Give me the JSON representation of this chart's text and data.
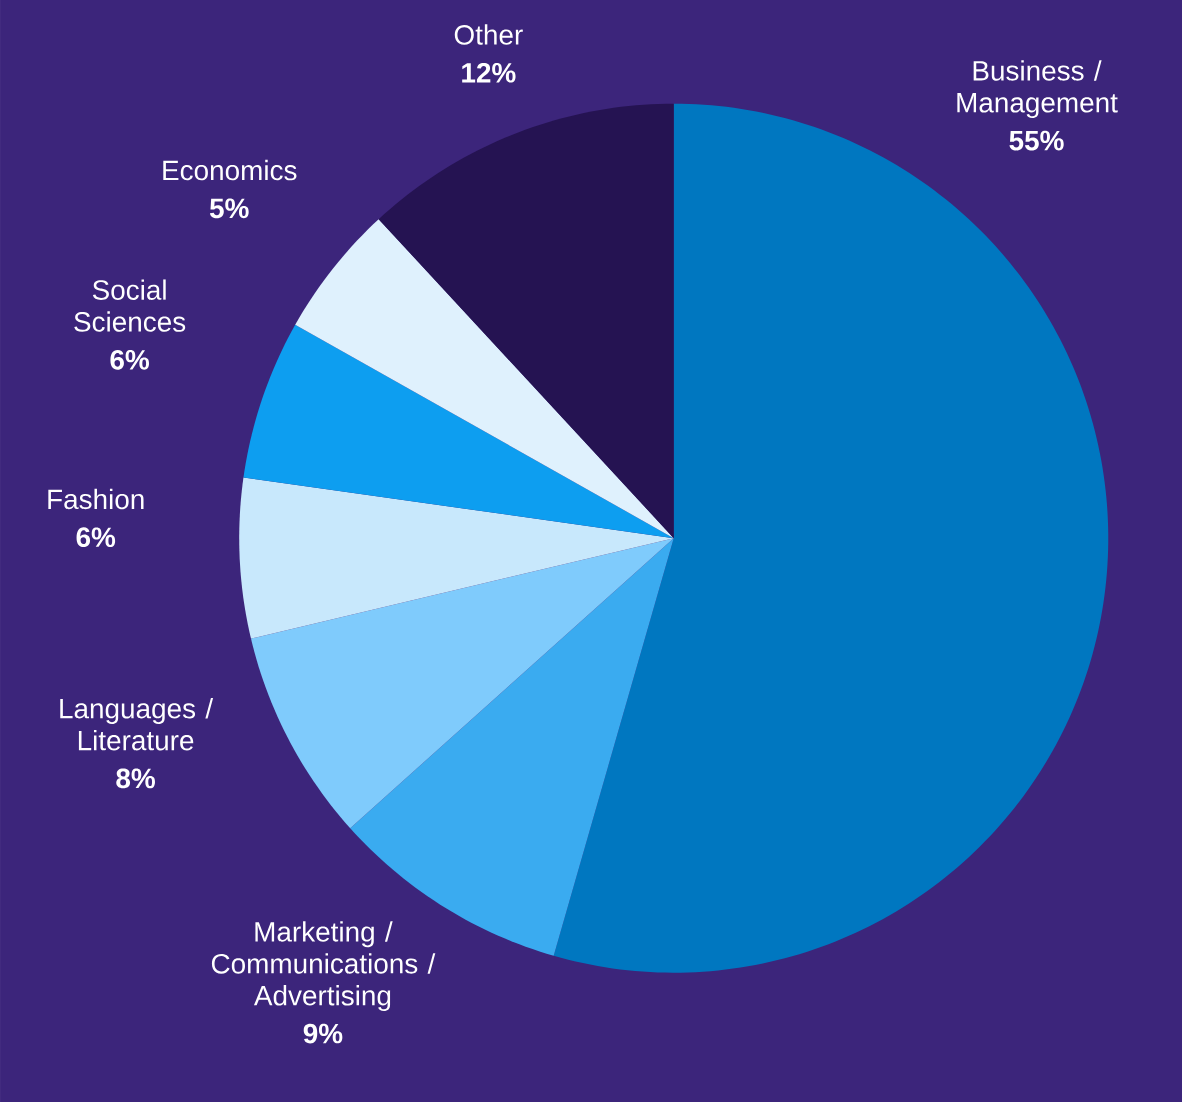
{
  "chart_data": {
    "type": "pie",
    "categories": [
      "Business / Management",
      "Marketing / Communications / Advertising",
      "Languages / Literature",
      "Fashion",
      "Social Sciences",
      "Economics",
      "Other"
    ],
    "values": [
      55,
      9,
      8,
      6,
      6,
      5,
      12
    ],
    "value_labels": [
      "55%",
      "9%",
      "8%",
      "6%",
      "6%",
      "5%",
      "12%"
    ],
    "colors": [
      "#0077c0",
      "#3aabf0",
      "#7fcbfc",
      "#c8e8fc",
      "#0d9ef0",
      "#dff1fd",
      "#251352"
    ]
  }
}
